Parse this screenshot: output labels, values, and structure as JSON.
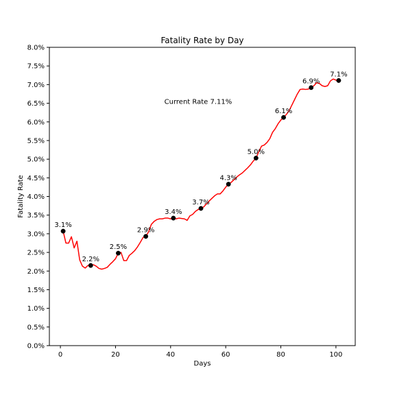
{
  "chart_data": {
    "type": "line",
    "title": "Fatality Rate by Day",
    "xlabel": "Days",
    "ylabel": "Fatality Rate",
    "xlim": [
      -4,
      107
    ],
    "ylim": [
      0.0,
      8.0
    ],
    "x_ticks": [
      0,
      20,
      40,
      60,
      80,
      100
    ],
    "x_tick_labels": [
      "0",
      "20",
      "40",
      "60",
      "80",
      "100"
    ],
    "y_ticks": [
      0.0,
      0.5,
      1.0,
      1.5,
      2.0,
      2.5,
      3.0,
      3.5,
      4.0,
      4.5,
      5.0,
      5.5,
      6.0,
      6.5,
      7.0,
      7.5,
      8.0
    ],
    "y_tick_labels": [
      "0.0%",
      "0.5%",
      "1.0%",
      "1.5%",
      "2.0%",
      "2.5%",
      "3.0%",
      "3.5%",
      "4.0%",
      "4.5%",
      "5.0%",
      "5.5%",
      "6.0%",
      "6.5%",
      "7.0%",
      "7.5%",
      "8.0%"
    ],
    "grid": false,
    "line_color": "#ff0000",
    "marker_color": "#000000",
    "series": [
      {
        "x": [
          1,
          2,
          3,
          4,
          5,
          6,
          7,
          8,
          9,
          10,
          11,
          12,
          13,
          14,
          15,
          16,
          17,
          18,
          19,
          20,
          21,
          22,
          23,
          24,
          25,
          26,
          27,
          28,
          29,
          30,
          31,
          32,
          33,
          34,
          35,
          36,
          37,
          38,
          39,
          40,
          41,
          42,
          43,
          44,
          45,
          46,
          47,
          48,
          49,
          50,
          51,
          52,
          53,
          54,
          55,
          56,
          57,
          58,
          59,
          60,
          61,
          62,
          63,
          64,
          65,
          66,
          67,
          68,
          69,
          70,
          71,
          72,
          73,
          74,
          75,
          76,
          77,
          78,
          79,
          80,
          81,
          82,
          83,
          84,
          85,
          86,
          87,
          88,
          89,
          90,
          91,
          92,
          93,
          94,
          95,
          96,
          97,
          98,
          99,
          100,
          101
        ],
        "values": [
          3.07,
          2.75,
          2.75,
          2.92,
          2.62,
          2.8,
          2.3,
          2.13,
          2.08,
          2.15,
          2.15,
          2.17,
          2.13,
          2.07,
          2.05,
          2.07,
          2.1,
          2.18,
          2.25,
          2.33,
          2.48,
          2.5,
          2.28,
          2.28,
          2.42,
          2.48,
          2.55,
          2.65,
          2.77,
          2.9,
          2.93,
          3.05,
          3.25,
          3.33,
          3.38,
          3.4,
          3.4,
          3.42,
          3.42,
          3.4,
          3.42,
          3.4,
          3.42,
          3.41,
          3.4,
          3.36,
          3.48,
          3.52,
          3.6,
          3.65,
          3.68,
          3.72,
          3.8,
          3.88,
          3.95,
          4.02,
          4.07,
          4.07,
          4.15,
          4.25,
          4.33,
          4.38,
          4.45,
          4.52,
          4.58,
          4.63,
          4.7,
          4.77,
          4.85,
          4.95,
          5.03,
          5.2,
          5.35,
          5.38,
          5.45,
          5.55,
          5.72,
          5.82,
          5.95,
          6.05,
          6.12,
          6.2,
          6.3,
          6.45,
          6.6,
          6.75,
          6.87,
          6.88,
          6.87,
          6.88,
          6.92,
          6.97,
          7.05,
          7.03,
          6.97,
          6.95,
          6.97,
          7.1,
          7.15,
          7.12,
          7.11
        ]
      }
    ],
    "markers": [
      {
        "x": 1,
        "y": 3.07,
        "label": "3.1%"
      },
      {
        "x": 11,
        "y": 2.15,
        "label": "2.2%"
      },
      {
        "x": 21,
        "y": 2.48,
        "label": "2.5%"
      },
      {
        "x": 31,
        "y": 2.93,
        "label": "2.9%"
      },
      {
        "x": 41,
        "y": 3.42,
        "label": "3.4%"
      },
      {
        "x": 51,
        "y": 3.68,
        "label": "3.7%"
      },
      {
        "x": 61,
        "y": 4.33,
        "label": "4.3%"
      },
      {
        "x": 71,
        "y": 5.03,
        "label": "5.0%"
      },
      {
        "x": 81,
        "y": 6.12,
        "label": "6.1%"
      },
      {
        "x": 91,
        "y": 6.92,
        "label": "6.9%"
      },
      {
        "x": 101,
        "y": 7.11,
        "label": "7.1%"
      }
    ],
    "annotation": {
      "text": "Current Rate 7.11%",
      "x": 50,
      "y": 6.55
    }
  }
}
